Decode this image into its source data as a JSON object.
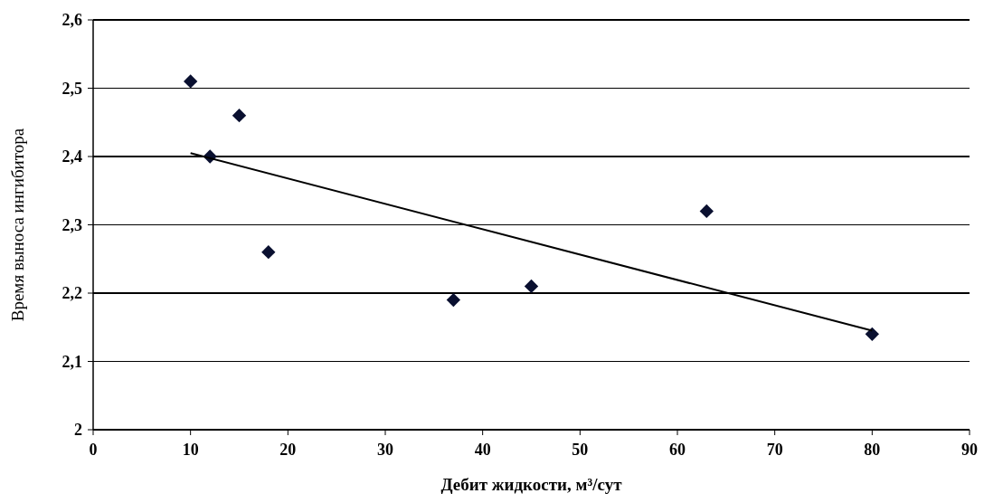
{
  "chart_data": {
    "type": "scatter",
    "xlabel": "Дебит жидкости, м³/сут",
    "ylabel": "Время выноса ингибитора",
    "x": [
      10,
      12,
      15,
      18,
      37,
      45,
      63,
      80
    ],
    "series": [
      {
        "color": "#0a1030",
        "marker": "diamond",
        "values": [
          2.51,
          2.4,
          2.46,
          2.26,
          2.19,
          2.21,
          2.32,
          2.14
        ]
      },
      {
        "type": "line",
        "color": "#000000",
        "marker": "none",
        "x": [
          10,
          80
        ],
        "values": [
          2.405,
          2.145
        ]
      }
    ],
    "xlim": [
      0,
      90
    ],
    "xticks": [
      0,
      10,
      20,
      30,
      40,
      50,
      60,
      70,
      80,
      90
    ],
    "ylim": [
      2,
      2.6
    ],
    "yticks": [
      2,
      {
        "value": 2.1,
        "label": "2,1"
      },
      {
        "value": 2.2,
        "label": "2,2"
      },
      {
        "value": 2.3,
        "label": "2,3"
      },
      {
        "value": 2.4,
        "label": "2,4"
      },
      {
        "value": 2.5,
        "label": "2,5"
      },
      {
        "value": 2.6,
        "label": "2,6"
      }
    ],
    "grid": "y"
  }
}
